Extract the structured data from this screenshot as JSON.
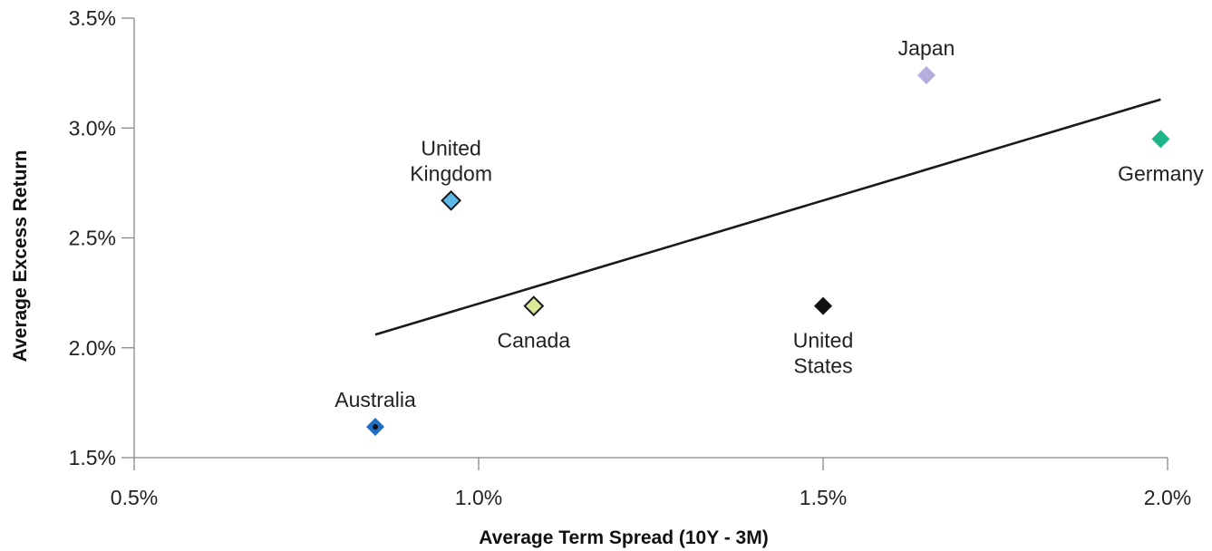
{
  "chart_data": {
    "type": "scatter",
    "title": "",
    "xlabel": "Average Term Spread (10Y - 3M)",
    "ylabel": "Average Excess Return",
    "xlim": [
      0.5,
      2.0
    ],
    "ylim": [
      1.5,
      3.5
    ],
    "x_ticks": [
      0.5,
      1.0,
      1.5,
      2.0
    ],
    "x_tick_labels": [
      "0.5%",
      "1.0%",
      "1.5%",
      "2.0%"
    ],
    "y_ticks": [
      1.5,
      2.0,
      2.5,
      3.0,
      3.5
    ],
    "y_tick_labels": [
      "1.5%",
      "2.0%",
      "2.5%",
      "3.0%",
      "3.5%"
    ],
    "marker": "diamond",
    "points": [
      {
        "label_lines": [
          "Australia"
        ],
        "x": 0.85,
        "y": 1.64,
        "color": "#1f6fc4",
        "label_pos": "above"
      },
      {
        "label_lines": [
          "United",
          "Kingdom"
        ],
        "x": 0.96,
        "y": 2.67,
        "color": "#5cb8e6",
        "label_pos": "above"
      },
      {
        "label_lines": [
          "Canada"
        ],
        "x": 1.08,
        "y": 2.19,
        "color": "#dde896",
        "label_pos": "below"
      },
      {
        "label_lines": [
          "United",
          "States"
        ],
        "x": 1.5,
        "y": 2.19,
        "color": "#111111",
        "label_pos": "below"
      },
      {
        "label_lines": [
          "Japan"
        ],
        "x": 1.65,
        "y": 3.24,
        "color": "#b3aedb",
        "label_pos": "above"
      },
      {
        "label_lines": [
          "Germany"
        ],
        "x": 1.99,
        "y": 2.95,
        "color": "#1fb58a",
        "label_pos": "below"
      }
    ],
    "trendline": {
      "x": [
        0.85,
        1.99
      ],
      "y": [
        2.06,
        3.13
      ]
    },
    "grid": false,
    "legend": "none"
  }
}
